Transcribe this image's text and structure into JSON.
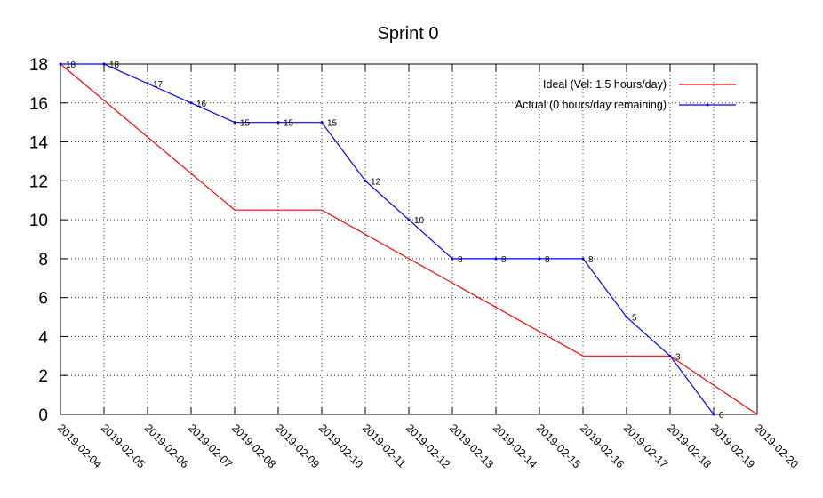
{
  "chart_data": {
    "type": "line",
    "title": "Sprint 0",
    "xlabel": "",
    "ylabel": "",
    "x": [
      "2019-02-04",
      "2019-02-05",
      "2019-02-06",
      "2019-02-07",
      "2019-02-08",
      "2019-02-09",
      "2019-02-10",
      "2019-02-11",
      "2019-02-12",
      "2019-02-13",
      "2019-02-14",
      "2019-02-15",
      "2019-02-16",
      "2019-02-17",
      "2019-02-18",
      "2019-02-19",
      "2019-02-20"
    ],
    "ylim": [
      0,
      18
    ],
    "yticks": [
      "0",
      "2",
      "4",
      "6",
      "8",
      "10",
      "12",
      "14",
      "16",
      "18"
    ],
    "grid": true,
    "legend_position": "top-right",
    "series": [
      {
        "name": "Ideal (Vel: 1.5 hours/day)",
        "color": "#ff0000",
        "points": [
          [
            "2019-02-04",
            18
          ],
          [
            "2019-02-08",
            10.5
          ],
          [
            "2019-02-10",
            10.5
          ],
          [
            "2019-02-16",
            3
          ],
          [
            "2019-02-18",
            3
          ],
          [
            "2019-02-20",
            0
          ]
        ]
      },
      {
        "name": "Actual (0 hours/day remaining)",
        "color": "#0000ff",
        "points": [
          [
            "2019-02-04",
            18
          ],
          [
            "2019-02-05",
            18
          ],
          [
            "2019-02-06",
            17
          ],
          [
            "2019-02-07",
            16
          ],
          [
            "2019-02-08",
            15
          ],
          [
            "2019-02-09",
            15
          ],
          [
            "2019-02-10",
            15
          ],
          [
            "2019-02-11",
            12
          ],
          [
            "2019-02-12",
            10
          ],
          [
            "2019-02-13",
            8
          ],
          [
            "2019-02-14",
            8
          ],
          [
            "2019-02-15",
            8
          ],
          [
            "2019-02-16",
            8
          ],
          [
            "2019-02-17",
            5
          ],
          [
            "2019-02-18",
            3
          ],
          [
            "2019-02-19",
            0
          ]
        ],
        "labels": [
          "18",
          "18",
          "17",
          "16",
          "15",
          "15",
          "15",
          "12",
          "10",
          "8",
          "8",
          "8",
          "8",
          "5",
          "3",
          "0"
        ]
      }
    ]
  }
}
